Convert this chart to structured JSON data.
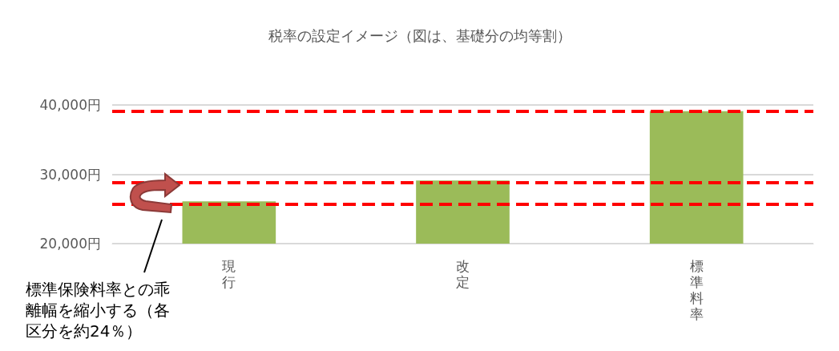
{
  "chart_data": {
    "type": "bar",
    "title": "税率の設定イメージ（図は、基礎分の均等割）",
    "categories": [
      "現行",
      "改定",
      "標準料率"
    ],
    "values": [
      26100,
      29100,
      39100
    ],
    "color": "#9bbb59",
    "ylim": [
      20000,
      40000
    ],
    "yticks": [
      {
        "value": 20000,
        "label": "20,000円"
      },
      {
        "value": 30000,
        "label": "30,000円"
      },
      {
        "value": 40000,
        "label": "40,000円"
      }
    ],
    "grid": "y",
    "ref_lines": [
      {
        "axis": "y",
        "value": 39100,
        "color": "#ff0000",
        "line_style": "dashed"
      },
      {
        "axis": "y",
        "value": 28800,
        "color": "#ff0000",
        "line_style": "dashed"
      },
      {
        "axis": "y",
        "value": 25700,
        "color": "#ff0000",
        "line_style": "dashed"
      }
    ],
    "annotations": [
      "標準保険料率との乖離幅を縮小する（各区分を約24％）"
    ]
  }
}
